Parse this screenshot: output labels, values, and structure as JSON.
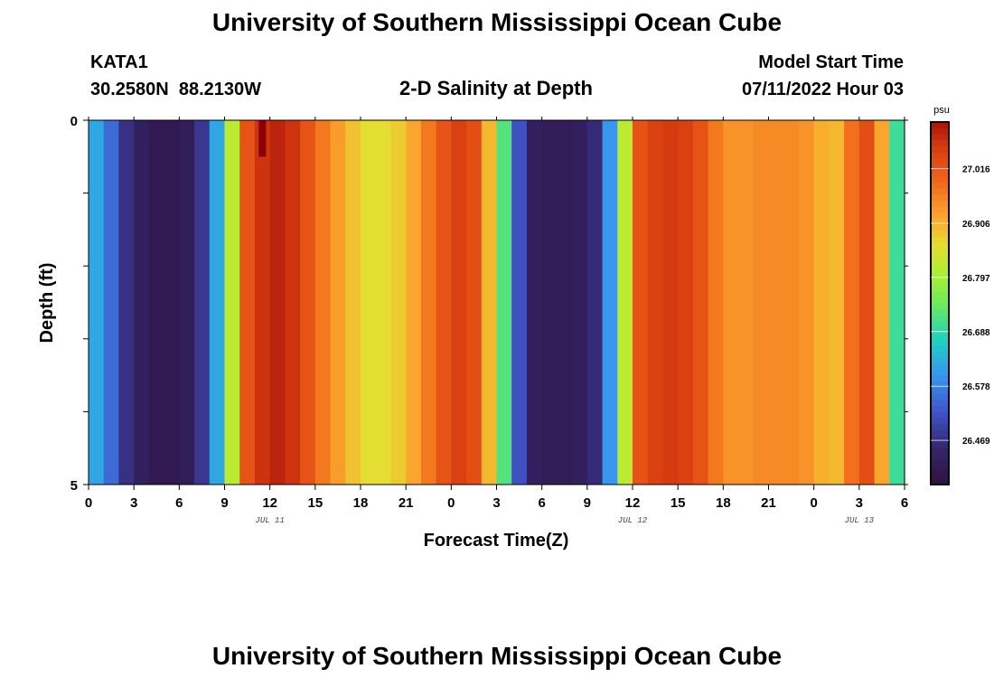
{
  "page": {
    "title": "University of Southern Mississippi Ocean Cube",
    "station": "KATA1",
    "coords": "30.2580N  88.2130W",
    "plot_title": "2-D Salinity at Depth",
    "start_label": "Model Start Time",
    "start_value": "07/11/2022 Hour 03",
    "footer_title": "University of Southern Mississippi Ocean Cube"
  },
  "chart_data": {
    "type": "heatmap",
    "title": "2-D Salinity at Depth",
    "xlabel": "Forecast Time(Z)",
    "ylabel": "Depth (ft)",
    "ylim": [
      0,
      5
    ],
    "y_ticks": [
      0,
      5
    ],
    "x_ticks": [
      "0",
      "3",
      "6",
      "9",
      "12",
      "15",
      "18",
      "21",
      "0",
      "3",
      "6",
      "9",
      "12",
      "15",
      "18",
      "21",
      "0",
      "3",
      "6"
    ],
    "date_labels": [
      {
        "text": "JUL 11",
        "at_hour": 12
      },
      {
        "text": "JUL 12",
        "at_hour": 36
      },
      {
        "text": "JUL 13",
        "at_hour": 51
      }
    ],
    "x_range_hours": [
      0,
      54
    ],
    "colorbar": {
      "unit": "psu",
      "ticks": [
        "27.016",
        "26.906",
        "26.797",
        "26.688",
        "26.578",
        "26.469"
      ],
      "tick_values": [
        27.016,
        26.906,
        26.797,
        26.688,
        26.578,
        26.469
      ],
      "range": [
        26.38,
        27.11
      ]
    },
    "hourly_salinity": [
      26.62,
      26.55,
      26.47,
      26.43,
      26.41,
      26.41,
      26.42,
      26.48,
      26.62,
      26.82,
      27.02,
      27.07,
      27.09,
      27.07,
      27.02,
      26.97,
      26.93,
      26.89,
      26.86,
      26.86,
      26.88,
      26.92,
      26.97,
      27.02,
      27.05,
      27.03,
      26.9,
      26.72,
      26.52,
      26.43,
      26.42,
      26.42,
      26.43,
      26.46,
      26.6,
      26.82,
      27.02,
      27.05,
      27.06,
      27.05,
      27.02,
      26.97,
      26.94,
      26.94,
      26.95,
      26.95,
      26.95,
      26.94,
      26.91,
      26.9,
      26.98,
      27.03,
      26.92,
      26.7
    ],
    "anomaly": {
      "hour": 11.5,
      "depth_from": 0,
      "depth_to": 0.5,
      "value": 27.11
    }
  }
}
